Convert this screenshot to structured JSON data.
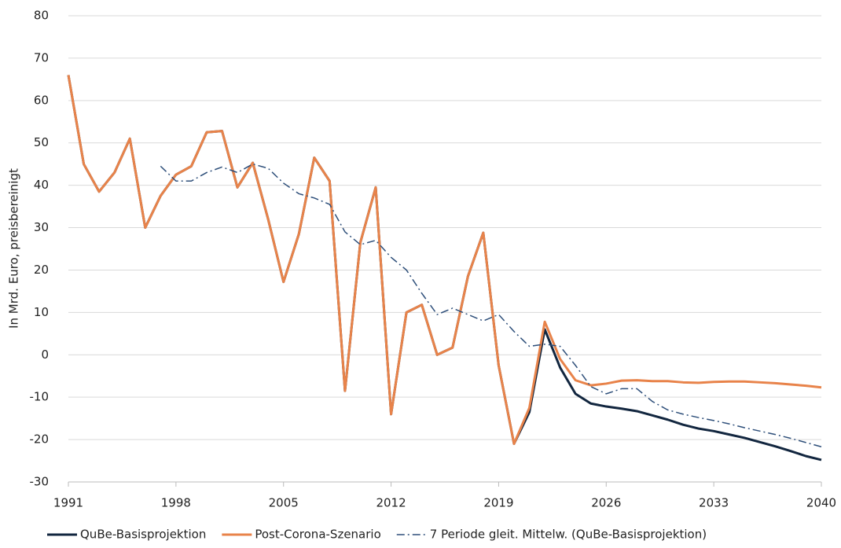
{
  "chart_data": {
    "type": "line",
    "ylabel": "In Mrd. Euro, preisbereinigt",
    "x": [
      1991,
      1992,
      1993,
      1994,
      1995,
      1996,
      1997,
      1998,
      1999,
      2000,
      2001,
      2002,
      2003,
      2004,
      2005,
      2006,
      2007,
      2008,
      2009,
      2010,
      2011,
      2012,
      2013,
      2014,
      2015,
      2016,
      2017,
      2018,
      2019,
      2020,
      2021,
      2022,
      2023,
      2024,
      2025,
      2026,
      2027,
      2028,
      2029,
      2030,
      2031,
      2032,
      2033,
      2034,
      2035,
      2036,
      2037,
      2038,
      2039,
      2040
    ],
    "series": [
      {
        "name": "QuBe-Basisprojektion",
        "color": "#12263f",
        "dash": "solid",
        "values": [
          66,
          45,
          38.5,
          43,
          51,
          30,
          37.5,
          42.5,
          44.5,
          52.5,
          52.8,
          39.5,
          45.3,
          32,
          17.2,
          28.5,
          46.5,
          41,
          -8.5,
          26.5,
          39.5,
          -14,
          10,
          11.8,
          0,
          1.7,
          18.5,
          28.8,
          -2.5,
          -21,
          -13.5,
          6,
          -3,
          -9.2,
          -11.5,
          -12.2,
          -12.7,
          -13.3,
          -14.3,
          -15.3,
          -16.5,
          -17.4,
          -18,
          -18.8,
          -19.6,
          -20.6,
          -21.6,
          -22.7,
          -23.9,
          -24.8
        ]
      },
      {
        "name": "Post-Corona-Szenario",
        "color": "#e8834a",
        "dash": "solid",
        "values": [
          66,
          45,
          38.5,
          43,
          51,
          30,
          37.5,
          42.5,
          44.5,
          52.5,
          52.8,
          39.5,
          45.3,
          32,
          17.2,
          28.5,
          46.5,
          41,
          -8.5,
          26.5,
          39.5,
          -14,
          10,
          11.8,
          0,
          1.7,
          18.5,
          28.8,
          -2.5,
          -21,
          -12.5,
          7.8,
          -1,
          -6,
          -7.2,
          -6.8,
          -6.1,
          -6,
          -6.2,
          -6.2,
          -6.5,
          -6.6,
          -6.4,
          -6.3,
          -6.3,
          -6.5,
          -6.7,
          -7,
          -7.3,
          -7.7
        ]
      },
      {
        "name": "7 Periode gleit. Mittelw. (QuBe-Basisprojektion)",
        "color": "#2e4f7a",
        "dash": "dashdot",
        "values": [
          null,
          null,
          null,
          null,
          null,
          null,
          44.5,
          41,
          41,
          43,
          44.3,
          43,
          45,
          44,
          40.5,
          38,
          37,
          35.5,
          29,
          26,
          27,
          23,
          20,
          14.5,
          9.5,
          11,
          9.5,
          8,
          9.5,
          5.5,
          2,
          2.5,
          2,
          -2.5,
          -7.5,
          -9.2,
          -8,
          -8,
          -11,
          -13,
          -14,
          -14.8,
          -15.5,
          -16.3,
          -17.2,
          -18,
          -18.8,
          -19.7,
          -20.7,
          -21.7
        ]
      }
    ],
    "xlim": [
      1991,
      2040
    ],
    "xticks": [
      1991,
      1998,
      2005,
      2012,
      2019,
      2026,
      2033,
      2040
    ],
    "ylim": [
      -30,
      80
    ],
    "yticks": [
      -30,
      -20,
      -10,
      0,
      10,
      20,
      30,
      40,
      50,
      60,
      70,
      80
    ],
    "grid": true,
    "legend": "bottom"
  }
}
